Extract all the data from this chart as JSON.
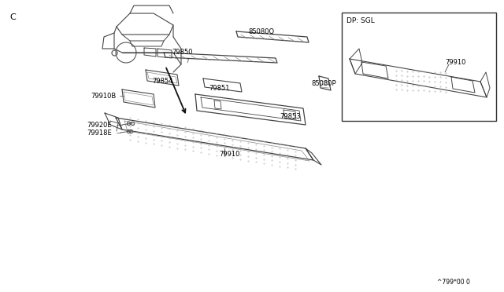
{
  "background_color": "#ffffff",
  "line_color": "#555555",
  "text_color": "#000000",
  "fig_width": 6.4,
  "fig_height": 3.72,
  "corner_label": "C",
  "footer_text": "^799*00 0",
  "inset_label": "DP: SGL"
}
